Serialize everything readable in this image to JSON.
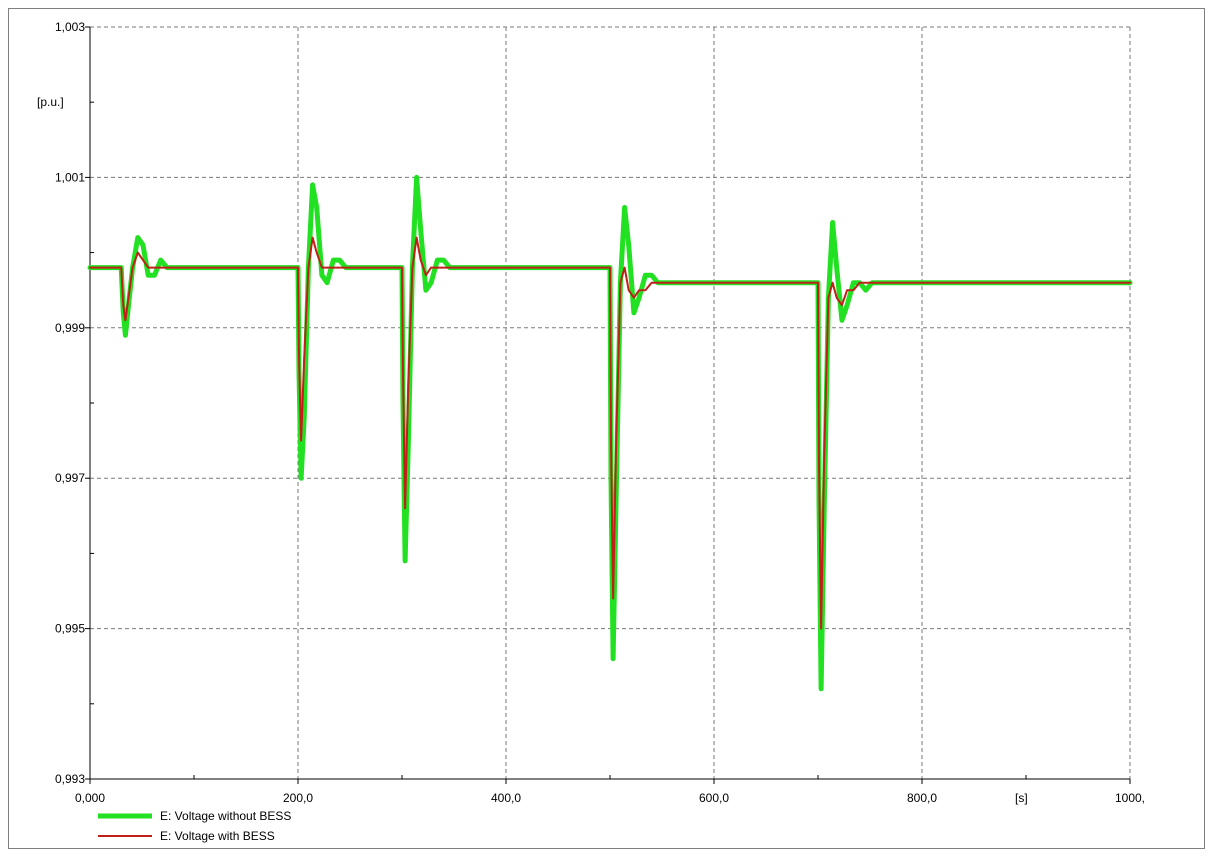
{
  "chart_data": {
    "type": "line",
    "x_unit": "[s]",
    "y_unit": "[p.u.]",
    "xlim": [
      0,
      1000
    ],
    "ylim": [
      0.993,
      1.003
    ],
    "grid": true,
    "legend_position": "bottom-left",
    "x_ticks": [
      {
        "value": 0,
        "label": "0,000"
      },
      {
        "value": 200,
        "label": "200,0"
      },
      {
        "value": 400,
        "label": "400,0"
      },
      {
        "value": 600,
        "label": "600,0"
      },
      {
        "value": 800,
        "label": "800,0"
      },
      {
        "value": 1000,
        "label": "1000,"
      }
    ],
    "y_ticks": [
      {
        "value": 0.993,
        "label": "0,993"
      },
      {
        "value": 0.995,
        "label": "0,995"
      },
      {
        "value": 0.997,
        "label": "0,997"
      },
      {
        "value": 0.999,
        "label": "0,999"
      },
      {
        "value": 1.001,
        "label": "1,001"
      },
      {
        "value": 1.003,
        "label": "1,003"
      }
    ],
    "series": [
      {
        "name": "E: Voltage without BESS",
        "color": "#22e022",
        "x": [
          0,
          30,
          32,
          34,
          37,
          41,
          46,
          51,
          56,
          62,
          68,
          74,
          80,
          90,
          200,
          201,
          203,
          206,
          210,
          214,
          218,
          223,
          228,
          234,
          240,
          246,
          252,
          260,
          300,
          301,
          303,
          306,
          310,
          314,
          318,
          323,
          328,
          334,
          340,
          346,
          352,
          360,
          500,
          501,
          503,
          506,
          510,
          514,
          518,
          523,
          528,
          534,
          540,
          546,
          552,
          560,
          700,
          701,
          703,
          706,
          710,
          714,
          718,
          723,
          728,
          734,
          740,
          746,
          752,
          760,
          1000
        ],
        "y": [
          0.9998,
          0.9998,
          0.9992,
          0.9989,
          0.9993,
          0.9998,
          1.0002,
          1.0001,
          0.9997,
          0.9997,
          0.9999,
          0.9998,
          0.9998,
          0.9998,
          0.9998,
          0.9984,
          0.997,
          0.9978,
          0.9998,
          1.0009,
          1.0006,
          0.9997,
          0.9996,
          0.9999,
          0.9999,
          0.9998,
          0.9998,
          0.9998,
          0.9998,
          0.998,
          0.9959,
          0.9974,
          0.9998,
          1.001,
          1.0003,
          0.9995,
          0.9996,
          0.9999,
          0.9999,
          0.9998,
          0.9998,
          0.9998,
          0.9998,
          0.997,
          0.9946,
          0.9968,
          0.9996,
          1.0006,
          1.0001,
          0.9992,
          0.9994,
          0.9997,
          0.9997,
          0.9996,
          0.9996,
          0.9996,
          0.9996,
          0.9967,
          0.9942,
          0.9966,
          0.9994,
          1.0004,
          0.9998,
          0.9991,
          0.9993,
          0.9996,
          0.9996,
          0.9995,
          0.9996,
          0.9996,
          0.9996
        ]
      },
      {
        "name": "E: Voltage with BESS",
        "color": "#c0201a",
        "x": [
          0,
          30,
          32,
          34,
          37,
          41,
          46,
          51,
          56,
          62,
          68,
          74,
          80,
          90,
          200,
          201,
          203,
          206,
          210,
          214,
          218,
          223,
          228,
          234,
          240,
          246,
          252,
          260,
          300,
          301,
          303,
          306,
          310,
          314,
          318,
          323,
          328,
          334,
          340,
          346,
          352,
          360,
          500,
          501,
          503,
          506,
          510,
          514,
          518,
          523,
          528,
          534,
          540,
          546,
          552,
          560,
          700,
          701,
          703,
          706,
          710,
          714,
          718,
          723,
          728,
          734,
          740,
          746,
          752,
          760,
          1000
        ],
        "y": [
          0.9998,
          0.9998,
          0.9993,
          0.9991,
          0.9994,
          0.9998,
          1.0,
          0.9999,
          0.9998,
          0.9998,
          0.9998,
          0.9998,
          0.9998,
          0.9998,
          0.9998,
          0.9986,
          0.9975,
          0.9986,
          0.9998,
          1.0002,
          1.0,
          0.9998,
          0.9998,
          0.9998,
          0.9998,
          0.9998,
          0.9998,
          0.9998,
          0.9998,
          0.9984,
          0.9966,
          0.9982,
          0.9998,
          1.0002,
          0.9999,
          0.9997,
          0.9998,
          0.9998,
          0.9998,
          0.9998,
          0.9998,
          0.9998,
          0.9998,
          0.9975,
          0.9954,
          0.9975,
          0.9996,
          0.9998,
          0.9995,
          0.9994,
          0.9995,
          0.9995,
          0.9996,
          0.9996,
          0.9996,
          0.9996,
          0.9996,
          0.9972,
          0.995,
          0.9973,
          0.9994,
          0.9996,
          0.9994,
          0.9993,
          0.9995,
          0.9995,
          0.9996,
          0.9996,
          0.9996,
          0.9996,
          0.9996
        ]
      }
    ]
  }
}
